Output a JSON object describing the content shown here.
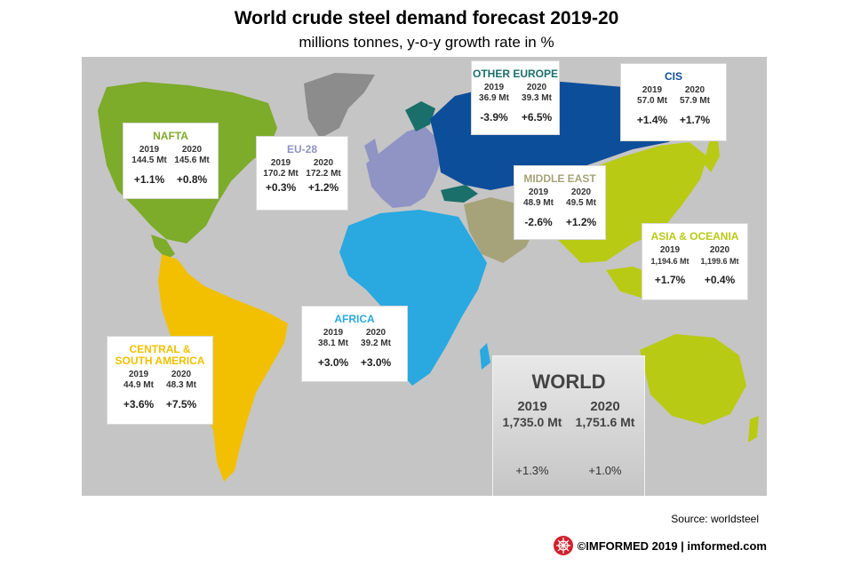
{
  "title": "World crude steel demand forecast 2019-20",
  "subtitle": "millions  tonnes, y-o-y growth rate in %",
  "colors": {
    "ocean": "#c5c5c5",
    "nafta": "#7dab2a",
    "south_america": "#f2c000",
    "eu28": "#8f94c4",
    "other_europe": "#1a6f6a",
    "cis": "#0d4e9a",
    "middle_east": "#a6a37a",
    "africa": "#29a9e0",
    "asia_oceania": "#b9ca14",
    "greenland": "#8c8c8c"
  },
  "regions": [
    {
      "id": "nafta",
      "name": "NAFTA",
      "color": "#7dab2a",
      "years": [
        "2019",
        "2020"
      ],
      "values": [
        "144.5 Mt",
        "145.6 Mt"
      ],
      "growth": [
        "+1.1%",
        "+0.8%"
      ]
    },
    {
      "id": "eu28",
      "name": "EU-28",
      "color": "#8f94c4",
      "years": [
        "2019",
        "2020"
      ],
      "values": [
        "170.2 Mt",
        "172.2 Mt"
      ],
      "growth": [
        "+0.3%",
        "+1.2%"
      ]
    },
    {
      "id": "other_europe",
      "name": "OTHER EUROPE",
      "color": "#1a6f6a",
      "years": [
        "2019",
        "2020"
      ],
      "values": [
        "36.9 Mt",
        "39.3 Mt"
      ],
      "growth": [
        "-3.9%",
        "+6.5%"
      ]
    },
    {
      "id": "cis",
      "name": "CIS",
      "color": "#0d4e9a",
      "years": [
        "2019",
        "2020"
      ],
      "values": [
        "57.0 Mt",
        "57.9 Mt"
      ],
      "growth": [
        "+1.4%",
        "+1.7%"
      ]
    },
    {
      "id": "middle_east",
      "name": "MIDDLE EAST",
      "color": "#a6a37a",
      "years": [
        "2019",
        "2020"
      ],
      "values": [
        "48.9 Mt",
        "49.5 Mt"
      ],
      "growth": [
        "-2.6%",
        "+1.2%"
      ]
    },
    {
      "id": "asia_oceania",
      "name": "ASIA & OCEANIA",
      "color": "#b9ca14",
      "years": [
        "2019",
        "2020"
      ],
      "values": [
        "1,194.6 Mt",
        "1,199.6 Mt"
      ],
      "growth": [
        "+1.7%",
        "+0.4%"
      ]
    },
    {
      "id": "africa",
      "name": "AFRICA",
      "color": "#29a9e0",
      "years": [
        "2019",
        "2020"
      ],
      "values": [
        "38.1 Mt",
        "39.2 Mt"
      ],
      "growth": [
        "+3.0%",
        "+3.0%"
      ]
    },
    {
      "id": "central_south_america",
      "name": "CENTRAL & SOUTH AMERICA",
      "color": "#f2c000",
      "years": [
        "2019",
        "2020"
      ],
      "values": [
        "44.9 Mt",
        "48.3 Mt"
      ],
      "growth": [
        "+3.6%",
        "+7.5%"
      ]
    }
  ],
  "world": {
    "name": "WORLD",
    "years": [
      "2019",
      "2020"
    ],
    "values": [
      "1,735.0 Mt",
      "1,751.6 Mt"
    ],
    "growth": [
      "+1.3%",
      "+1.0%"
    ]
  },
  "source": "Source: worldsteel",
  "footer": {
    "text": "©IMFORMED 2019  | imformed.com",
    "logo_icon": "imformed-logo-icon",
    "logo_color": "#d0202e"
  }
}
